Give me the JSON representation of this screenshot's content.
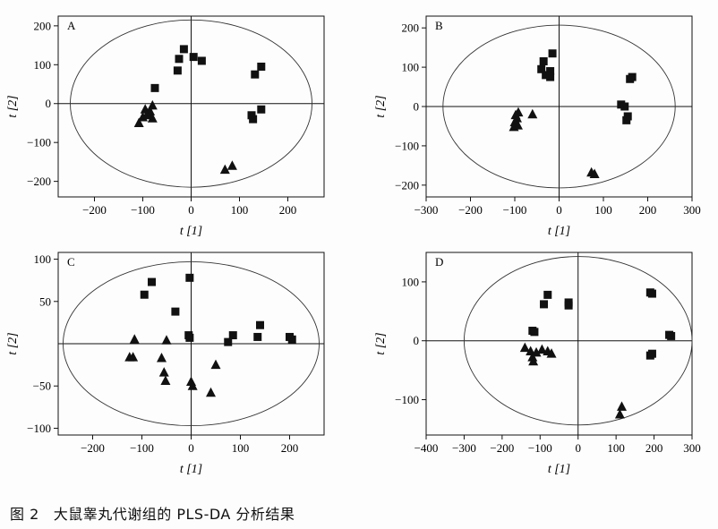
{
  "caption": {
    "number": "图 2",
    "text": "大鼠睾丸代谢组的 PLS-DA 分析结果"
  },
  "chart_data": [
    {
      "type": "scatter",
      "panel_label": "A",
      "xlabel": "t [1]",
      "ylabel": "t [2]",
      "xlim": [
        -275,
        275
      ],
      "ylim": [
        -240,
        225
      ],
      "xticks": [
        -200,
        -100,
        0,
        100,
        200
      ],
      "yticks": [
        -200,
        -100,
        0,
        100,
        200
      ],
      "ellipse": {
        "rx": 250,
        "ry": 215
      },
      "grid": false,
      "series": [
        {
          "marker": "square",
          "points": [
            [
              -15,
              140
            ],
            [
              -25,
              115
            ],
            [
              -28,
              85
            ],
            [
              5,
              120
            ],
            [
              22,
              110
            ],
            [
              -75,
              40
            ],
            [
              145,
              95
            ],
            [
              132,
              75
            ],
            [
              125,
              -30
            ],
            [
              128,
              -40
            ],
            [
              145,
              -15
            ]
          ]
        },
        {
          "marker": "triangle",
          "points": [
            [
              -80,
              -5
            ],
            [
              -85,
              -20
            ],
            [
              -95,
              -15
            ],
            [
              -88,
              -25
            ],
            [
              -100,
              -35
            ],
            [
              -80,
              -38
            ],
            [
              -108,
              -50
            ],
            [
              -92,
              -30
            ],
            [
              85,
              -160
            ],
            [
              70,
              -170
            ]
          ]
        }
      ]
    },
    {
      "type": "scatter",
      "panel_label": "B",
      "xlabel": "t [1]",
      "ylabel": "t [2]",
      "xlim": [
        -300,
        300
      ],
      "ylim": [
        -230,
        230
      ],
      "xticks": [
        -300,
        -200,
        -100,
        0,
        100,
        200,
        300
      ],
      "yticks": [
        -200,
        -100,
        0,
        100,
        200
      ],
      "ellipse": {
        "rx": 262,
        "ry": 207
      },
      "grid": false,
      "series": [
        {
          "marker": "square",
          "points": [
            [
              -15,
              135
            ],
            [
              -35,
              115
            ],
            [
              -40,
              95
            ],
            [
              -20,
              90
            ],
            [
              -30,
              80
            ],
            [
              -20,
              75
            ],
            [
              165,
              75
            ],
            [
              160,
              70
            ],
            [
              140,
              5
            ],
            [
              148,
              0
            ],
            [
              155,
              -25
            ],
            [
              152,
              -35
            ]
          ]
        },
        {
          "marker": "triangle",
          "points": [
            [
              -92,
              -15
            ],
            [
              -98,
              -22
            ],
            [
              -95,
              -30
            ],
            [
              -100,
              -40
            ],
            [
              -93,
              -48
            ],
            [
              -102,
              -52
            ],
            [
              -60,
              -20
            ],
            [
              73,
              -168
            ],
            [
              80,
              -172
            ]
          ]
        }
      ]
    },
    {
      "type": "scatter",
      "panel_label": "C",
      "xlabel": "t [1]",
      "ylabel": "t [2]",
      "xlim": [
        -270,
        270
      ],
      "ylim": [
        -108,
        108
      ],
      "xticks": [
        -200,
        -100,
        0,
        100,
        200
      ],
      "yticks": [
        -100,
        -50,
        50,
        100
      ],
      "ytick_labels": [
        "−100",
        "−50",
        "50",
        "100"
      ],
      "ellipse": {
        "rx": 260,
        "ry": 97
      },
      "grid": false,
      "series": [
        {
          "marker": "square",
          "points": [
            [
              -3,
              78
            ],
            [
              -80,
              73
            ],
            [
              -95,
              58
            ],
            [
              -32,
              38
            ],
            [
              -5,
              10
            ],
            [
              -3,
              7
            ],
            [
              140,
              22
            ],
            [
              85,
              10
            ],
            [
              135,
              8
            ],
            [
              200,
              8
            ],
            [
              205,
              5
            ],
            [
              75,
              2
            ]
          ]
        },
        {
          "marker": "triangle",
          "points": [
            [
              -115,
              5
            ],
            [
              -50,
              4
            ],
            [
              -125,
              -16
            ],
            [
              -118,
              -16
            ],
            [
              -60,
              -17
            ],
            [
              -55,
              -34
            ],
            [
              -52,
              -44
            ],
            [
              0,
              -45
            ],
            [
              3,
              -50
            ],
            [
              50,
              -25
            ],
            [
              40,
              -58
            ]
          ]
        }
      ]
    },
    {
      "type": "scatter",
      "panel_label": "D",
      "xlabel": "t [1]",
      "ylabel": "t [2]",
      "xlim": [
        -400,
        300
      ],
      "ylim": [
        -160,
        150
      ],
      "xticks": [
        -400,
        -300,
        -200,
        -100,
        0,
        100,
        200,
        300
      ],
      "yticks": [
        -100,
        0,
        100
      ],
      "ellipse": {
        "rx": 300,
        "ry": 143
      },
      "grid": false,
      "series": [
        {
          "marker": "square",
          "points": [
            [
              -25,
              65
            ],
            [
              -80,
              78
            ],
            [
              -90,
              62
            ],
            [
              -120,
              17
            ],
            [
              -115,
              15
            ],
            [
              -25,
              60
            ],
            [
              190,
              82
            ],
            [
              195,
              80
            ],
            [
              240,
              10
            ],
            [
              245,
              8
            ],
            [
              190,
              -25
            ],
            [
              195,
              -22
            ]
          ]
        },
        {
          "marker": "triangle",
          "points": [
            [
              -140,
              -12
            ],
            [
              -125,
              -18
            ],
            [
              -120,
              -28
            ],
            [
              -118,
              -35
            ],
            [
              -95,
              -15
            ],
            [
              -80,
              -18
            ],
            [
              -70,
              -22
            ],
            [
              -110,
              -20
            ],
            [
              115,
              -112
            ],
            [
              110,
              -125
            ]
          ]
        }
      ]
    }
  ]
}
